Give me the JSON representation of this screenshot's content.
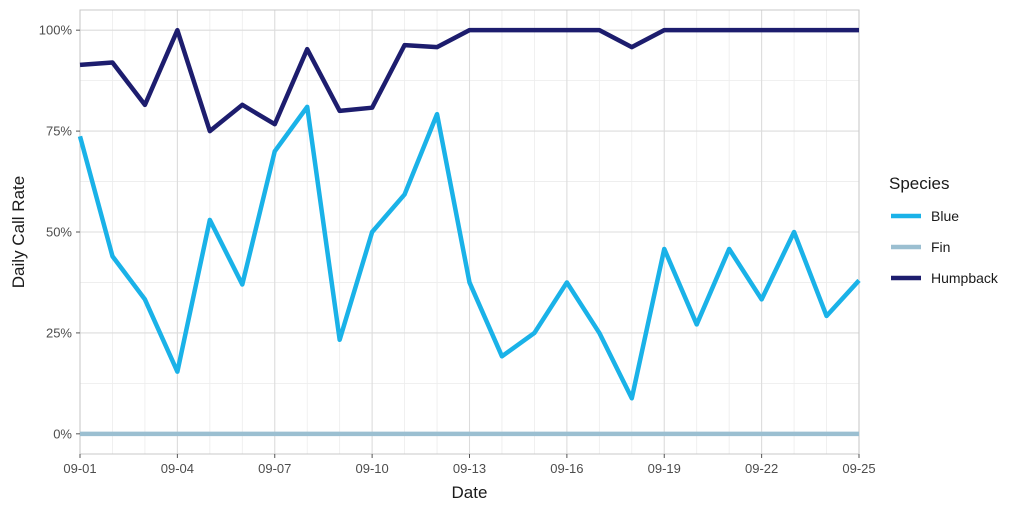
{
  "chart_data": {
    "type": "line",
    "xlabel": "Date",
    "ylabel": "Daily Call Rate",
    "x": [
      "09-01",
      "09-02",
      "09-03",
      "09-04",
      "09-05",
      "09-06",
      "09-07",
      "09-08",
      "09-09",
      "09-10",
      "09-11",
      "09-12",
      "09-13",
      "09-14",
      "09-15",
      "09-16",
      "09-17",
      "09-18",
      "09-19",
      "09-20",
      "09-21",
      "09-22",
      "09-23",
      "09-24",
      "09-25"
    ],
    "x_tick_labels": [
      "09-01",
      "09-04",
      "09-07",
      "09-10",
      "09-13",
      "09-16",
      "09-19",
      "09-22",
      "09-25"
    ],
    "y_tick_labels": [
      "0%",
      "25%",
      "50%",
      "75%",
      "100%"
    ],
    "y_ticks": [
      0,
      0.25,
      0.5,
      0.75,
      1.0
    ],
    "ylim": [
      -0.05,
      1.05
    ],
    "grid": true,
    "legend": {
      "title": "Species",
      "position": "right"
    },
    "series": [
      {
        "name": "Blue",
        "color": "#1ab2e8",
        "values": [
          0.737,
          0.44,
          0.333,
          0.154,
          0.53,
          0.37,
          0.7,
          0.81,
          0.233,
          0.5,
          0.593,
          0.792,
          0.375,
          0.192,
          0.25,
          0.375,
          0.25,
          0.088,
          0.458,
          0.271,
          0.458,
          0.333,
          0.5,
          0.292,
          0.38
        ]
      },
      {
        "name": "Fin",
        "color": "#9bbfd1",
        "values": [
          0,
          0,
          0,
          0,
          0,
          0,
          0,
          0,
          0,
          0,
          0,
          0,
          0,
          0,
          0,
          0,
          0,
          0,
          0,
          0,
          0,
          0,
          0,
          0,
          0
        ]
      },
      {
        "name": "Humpback",
        "color": "#1d1d6e",
        "values": [
          0.914,
          0.92,
          0.815,
          1.0,
          0.75,
          0.815,
          0.767,
          0.953,
          0.8,
          0.808,
          0.963,
          0.958,
          1.0,
          1.0,
          1.0,
          1.0,
          1.0,
          0.958,
          1.0,
          1.0,
          1.0,
          1.0,
          1.0,
          1.0,
          1.0
        ]
      }
    ]
  }
}
